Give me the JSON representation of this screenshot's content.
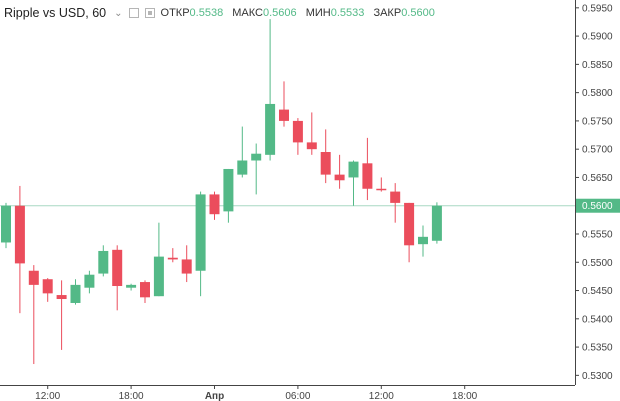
{
  "header": {
    "title": "Ripple vs USD, 60",
    "chevron_icon": "chevron-down-icon",
    "open_label": "ОТКР",
    "open_value": "0.5538",
    "high_label": "МАКС",
    "high_value": "0.5606",
    "low_label": "МИН",
    "low_value": "0.5533",
    "close_label": "ЗАКР",
    "close_value": "0.5600"
  },
  "last_price_label": "0.5600",
  "colors": {
    "up": "#53b987",
    "down": "#eb4d5c",
    "last_line": "#a8d8c4",
    "axis": "#444444"
  },
  "chart_data": {
    "type": "candlestick",
    "title": "Ripple vs USD, 60",
    "ylim": [
      0.529,
      0.5955
    ],
    "yticks": [
      "0.5950",
      "0.5900",
      "0.5850",
      "0.5800",
      "0.5750",
      "0.5700",
      "0.5650",
      "0.5600",
      "0.5550",
      "0.5500",
      "0.5450",
      "0.5400",
      "0.5350",
      "0.5300"
    ],
    "xticks": [
      {
        "label": "12:00",
        "index": 3,
        "bold": false
      },
      {
        "label": "18:00",
        "index": 9,
        "bold": false
      },
      {
        "label": "Апр",
        "index": 15,
        "bold": true
      },
      {
        "label": "06:00",
        "index": 21,
        "bold": false
      },
      {
        "label": "12:00",
        "index": 27,
        "bold": false
      },
      {
        "label": "18:00",
        "index": 33,
        "bold": false
      }
    ],
    "last_price": 0.56,
    "candles": [
      {
        "o": 0.5535,
        "h": 0.5605,
        "l": 0.5525,
        "c": 0.56
      },
      {
        "o": 0.56,
        "h": 0.5635,
        "l": 0.541,
        "c": 0.5498
      },
      {
        "o": 0.5485,
        "h": 0.5495,
        "l": 0.532,
        "c": 0.546
      },
      {
        "o": 0.547,
        "h": 0.5472,
        "l": 0.543,
        "c": 0.5445
      },
      {
        "o": 0.5442,
        "h": 0.5468,
        "l": 0.5345,
        "c": 0.5435
      },
      {
        "o": 0.5428,
        "h": 0.547,
        "l": 0.5425,
        "c": 0.546
      },
      {
        "o": 0.5455,
        "h": 0.5485,
        "l": 0.5445,
        "c": 0.5478
      },
      {
        "o": 0.548,
        "h": 0.553,
        "l": 0.5475,
        "c": 0.552
      },
      {
        "o": 0.5522,
        "h": 0.553,
        "l": 0.5415,
        "c": 0.5458
      },
      {
        "o": 0.5455,
        "h": 0.5462,
        "l": 0.545,
        "c": 0.546
      },
      {
        "o": 0.5465,
        "h": 0.5468,
        "l": 0.5428,
        "c": 0.5438
      },
      {
        "o": 0.544,
        "h": 0.557,
        "l": 0.544,
        "c": 0.551
      },
      {
        "o": 0.5508,
        "h": 0.5525,
        "l": 0.55,
        "c": 0.5505
      },
      {
        "o": 0.5505,
        "h": 0.553,
        "l": 0.5465,
        "c": 0.548
      },
      {
        "o": 0.5485,
        "h": 0.5625,
        "l": 0.544,
        "c": 0.562
      },
      {
        "o": 0.562,
        "h": 0.5625,
        "l": 0.5575,
        "c": 0.5585
      },
      {
        "o": 0.559,
        "h": 0.5665,
        "l": 0.557,
        "c": 0.5665
      },
      {
        "o": 0.5655,
        "h": 0.574,
        "l": 0.565,
        "c": 0.568
      },
      {
        "o": 0.568,
        "h": 0.571,
        "l": 0.562,
        "c": 0.5692
      },
      {
        "o": 0.569,
        "h": 0.593,
        "l": 0.568,
        "c": 0.578
      },
      {
        "o": 0.577,
        "h": 0.582,
        "l": 0.574,
        "c": 0.575
      },
      {
        "o": 0.575,
        "h": 0.5755,
        "l": 0.569,
        "c": 0.5712
      },
      {
        "o": 0.5712,
        "h": 0.5765,
        "l": 0.569,
        "c": 0.57
      },
      {
        "o": 0.5695,
        "h": 0.5735,
        "l": 0.564,
        "c": 0.5655
      },
      {
        "o": 0.5655,
        "h": 0.569,
        "l": 0.563,
        "c": 0.5645
      },
      {
        "o": 0.565,
        "h": 0.568,
        "l": 0.56,
        "c": 0.5678
      },
      {
        "o": 0.5675,
        "h": 0.572,
        "l": 0.561,
        "c": 0.563
      },
      {
        "o": 0.563,
        "h": 0.565,
        "l": 0.5625,
        "c": 0.5628
      },
      {
        "o": 0.5625,
        "h": 0.564,
        "l": 0.557,
        "c": 0.5605
      },
      {
        "o": 0.5605,
        "h": 0.5605,
        "l": 0.55,
        "c": 0.553
      },
      {
        "o": 0.5532,
        "h": 0.5565,
        "l": 0.551,
        "c": 0.5545
      },
      {
        "o": 0.5538,
        "h": 0.5606,
        "l": 0.5533,
        "c": 0.56
      }
    ]
  }
}
